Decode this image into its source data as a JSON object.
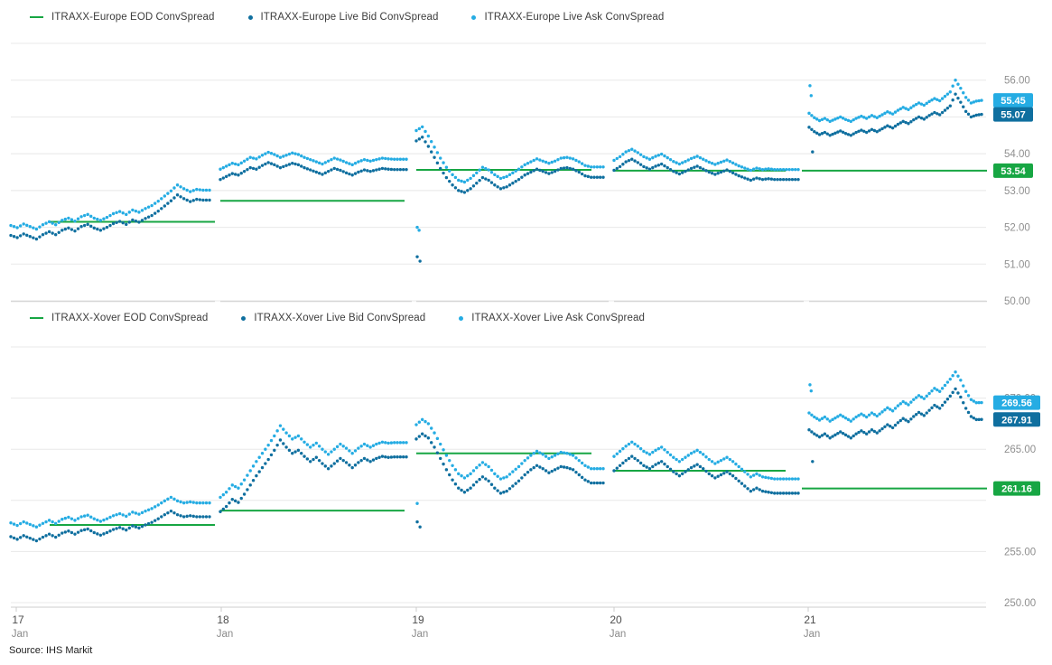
{
  "source": {
    "label": "Source: IHS Markit"
  },
  "colors": {
    "eod_green": "#17a643",
    "bid_dark": "#0f6f9f",
    "ask_light": "#25ace3",
    "grid": "#e8e8e8",
    "axis_line": "#cccccc",
    "tick_text": "#8f8f8f",
    "day_text": "#4d4d4d",
    "month_text": "#8a8a8a",
    "badge_text": "#ffffff"
  },
  "x_axis": {
    "days": [
      {
        "label": "17",
        "month": "Jan"
      },
      {
        "label": "18",
        "month": "Jan"
      },
      {
        "label": "19",
        "month": "Jan"
      },
      {
        "label": "20",
        "month": "Jan"
      },
      {
        "label": "21",
        "month": "Jan"
      }
    ]
  },
  "charts": [
    {
      "id": "europe",
      "legend": [
        {
          "label": "ITRAXX-Europe EOD ConvSpread",
          "marker": "dash",
          "series": "eod"
        },
        {
          "label": "ITRAXX-Europe Live Bid ConvSpread",
          "marker": "dot",
          "series": "bid"
        },
        {
          "label": "ITRAXX-Europe Live Ask ConvSpread",
          "marker": "dot",
          "series": "ask"
        }
      ],
      "chart_data": {
        "type": "scatter",
        "title": "",
        "ylim": [
          50,
          57
        ],
        "ytick_step": 1,
        "grid": true,
        "y_axis": {
          "tick_labels": [
            "56.00",
            "54.00",
            "53.00",
            "52.00",
            "51.00",
            "50.00"
          ],
          "tick_values": [
            56,
            54,
            53,
            52,
            51,
            50
          ]
        },
        "series": {
          "eod": {
            "name": "ITRAXX-Europe EOD ConvSpread",
            "per_day": [
              52.15,
              52.72,
              53.56,
              53.54,
              53.54
            ]
          },
          "bid": {
            "name": "ITRAXX-Europe Live Bid ConvSpread",
            "end_value": 55.07,
            "per_day": [
              [
                51.78,
                51.72,
                51.82,
                51.75,
                51.68,
                51.8,
                51.88,
                51.8,
                51.92,
                51.98,
                51.9,
                52.02,
                52.08,
                51.98,
                51.92,
                52.0,
                52.1,
                52.16,
                52.08,
                52.2,
                52.14,
                52.24,
                52.32,
                52.44,
                52.58,
                52.72,
                52.88,
                52.78,
                52.7,
                52.76,
                52.74,
                52.74
              ],
              [
                53.3,
                53.38,
                53.46,
                53.42,
                53.52,
                53.62,
                53.58,
                53.68,
                53.76,
                53.7,
                53.62,
                53.68,
                53.74,
                53.7,
                53.62,
                53.56,
                53.5,
                53.44,
                53.52,
                53.6,
                53.55,
                53.48,
                53.42,
                53.5,
                53.56,
                53.52,
                53.56,
                53.6,
                53.58,
                53.57,
                53.57,
                53.57
              ],
              [
                54.35,
                54.45,
                54.2,
                53.9,
                53.6,
                53.35,
                53.15,
                53.0,
                52.95,
                53.05,
                53.2,
                53.35,
                53.28,
                53.15,
                53.05,
                53.1,
                53.2,
                53.3,
                53.42,
                53.5,
                53.58,
                53.52,
                53.46,
                53.52,
                53.6,
                53.62,
                53.58,
                53.5,
                53.4,
                53.36,
                53.36,
                53.36
              ],
              [
                53.55,
                53.65,
                53.78,
                53.85,
                53.76,
                53.65,
                53.58,
                53.66,
                53.72,
                53.62,
                53.52,
                53.45,
                53.52,
                53.6,
                53.66,
                53.58,
                53.5,
                53.44,
                53.5,
                53.56,
                53.48,
                53.4,
                53.34,
                53.28,
                53.34,
                53.3,
                53.32,
                53.3,
                53.3,
                53.3,
                53.3,
                53.3
              ],
              [
                54.72,
                54.6,
                54.52,
                54.58,
                54.5,
                54.56,
                54.62,
                54.55,
                54.5,
                54.58,
                54.64,
                54.58,
                54.66,
                54.6,
                54.68,
                54.76,
                54.7,
                54.8,
                54.88,
                54.82,
                54.92,
                55.0,
                54.94,
                55.04,
                55.12,
                55.06,
                55.18,
                55.3,
                55.62,
                55.4,
                55.15,
                55.0,
                55.05,
                55.07
              ]
            ]
          },
          "ask": {
            "name": "ITRAXX-Europe Live Ask ConvSpread",
            "end_value": 55.45,
            "offsets_from_bid": [
              0.27,
              0.28,
              0.28,
              0.27,
              0.38
            ]
          }
        },
        "outliers": [
          {
            "day": 2,
            "series": "ask",
            "points": [
              [
                0.005,
                52.0
              ],
              [
                0.015,
                51.92
              ]
            ]
          },
          {
            "day": 2,
            "series": "bid",
            "points": [
              [
                0.005,
                51.2
              ],
              [
                0.02,
                51.08
              ]
            ]
          },
          {
            "day": 4,
            "series": "ask",
            "points": [
              [
                0.005,
                55.85
              ],
              [
                0.012,
                55.58
              ]
            ]
          },
          {
            "day": 4,
            "series": "bid",
            "points": [
              [
                0.02,
                54.05
              ]
            ]
          }
        ],
        "end_labels": [
          {
            "text": "55.45",
            "value": 55.45,
            "series": "ask"
          },
          {
            "text": "55.07",
            "value": 55.07,
            "series": "bid"
          },
          {
            "text": "53.54",
            "value": 53.54,
            "series": "eod"
          }
        ]
      }
    },
    {
      "id": "xover",
      "legend": [
        {
          "label": "ITRAXX-Xover EOD ConvSpread",
          "marker": "dash",
          "series": "eod"
        },
        {
          "label": "ITRAXX-Xover Live Bid ConvSpread",
          "marker": "dot",
          "series": "bid"
        },
        {
          "label": "ITRAXX-Xover Live Ask ConvSpread",
          "marker": "dot",
          "series": "ask"
        }
      ],
      "chart_data": {
        "type": "scatter",
        "title": "",
        "ylim": [
          250,
          275
        ],
        "ytick_step": 5,
        "grid": true,
        "y_axis": {
          "tick_labels": [
            "270.00",
            "265.00",
            "255.00",
            "250.00"
          ],
          "tick_values": [
            270,
            265,
            255,
            250
          ]
        },
        "series": {
          "eod": {
            "name": "ITRAXX-Xover EOD ConvSpread",
            "per_day": [
              257.6,
              259.0,
              264.6,
              262.9,
              261.16
            ]
          },
          "bid": {
            "name": "ITRAXX-Xover Live Bid ConvSpread",
            "end_value": 267.91,
            "per_day": [
              [
                256.45,
                256.2,
                256.55,
                256.3,
                256.05,
                256.4,
                256.7,
                256.4,
                256.8,
                257.0,
                256.7,
                257.05,
                257.2,
                256.85,
                256.6,
                256.85,
                257.15,
                257.35,
                257.1,
                257.5,
                257.3,
                257.6,
                257.85,
                258.2,
                258.6,
                258.95,
                258.6,
                258.4,
                258.5,
                258.4,
                258.4,
                258.4
              ],
              [
                258.9,
                259.4,
                260.1,
                259.8,
                260.6,
                261.5,
                262.4,
                263.2,
                264.0,
                264.9,
                265.9,
                265.2,
                264.6,
                264.9,
                264.3,
                263.8,
                264.2,
                263.6,
                263.1,
                263.6,
                264.1,
                263.7,
                263.2,
                263.7,
                264.1,
                263.8,
                264.1,
                264.3,
                264.2,
                264.25,
                264.25,
                264.25
              ],
              [
                266.0,
                266.5,
                266.1,
                265.2,
                264.1,
                263.0,
                262.0,
                261.2,
                260.8,
                261.2,
                261.8,
                262.3,
                261.9,
                261.2,
                260.7,
                260.9,
                261.4,
                261.9,
                262.5,
                263.0,
                263.4,
                263.1,
                262.7,
                263.0,
                263.3,
                263.2,
                263.0,
                262.5,
                262.0,
                261.7,
                261.7,
                261.7
              ],
              [
                262.9,
                263.4,
                263.9,
                264.3,
                263.9,
                263.4,
                263.1,
                263.5,
                263.8,
                263.3,
                262.8,
                262.4,
                262.8,
                263.2,
                263.5,
                263.1,
                262.6,
                262.2,
                262.5,
                262.8,
                262.4,
                261.9,
                261.4,
                260.9,
                261.2,
                260.9,
                260.8,
                260.7,
                260.7,
                260.7,
                260.7,
                260.7
              ],
              [
                266.9,
                266.5,
                266.2,
                266.5,
                266.1,
                266.4,
                266.7,
                266.4,
                266.1,
                266.5,
                266.8,
                266.5,
                266.9,
                266.6,
                267.0,
                267.4,
                267.1,
                267.6,
                268.0,
                267.7,
                268.2,
                268.6,
                268.3,
                268.8,
                269.3,
                269.0,
                269.6,
                270.2,
                270.9,
                270.1,
                269.0,
                268.2,
                267.9,
                267.91
              ]
            ]
          },
          "ask": {
            "name": "ITRAXX-Xover Live Ask ConvSpread",
            "end_value": 269.56,
            "offsets_from_bid": [
              1.35,
              1.4,
              1.4,
              1.4,
              1.65
            ]
          }
        },
        "outliers": [
          {
            "day": 2,
            "series": "bid",
            "points": [
              [
                0.005,
                257.9
              ],
              [
                0.02,
                257.4
              ]
            ]
          },
          {
            "day": 2,
            "series": "ask",
            "points": [
              [
                0.005,
                259.7
              ]
            ]
          },
          {
            "day": 4,
            "series": "ask",
            "points": [
              [
                0.005,
                271.3
              ],
              [
                0.012,
                270.7
              ]
            ]
          },
          {
            "day": 4,
            "series": "bid",
            "points": [
              [
                0.02,
                263.8
              ]
            ]
          }
        ],
        "end_labels": [
          {
            "text": "269.56",
            "value": 269.56,
            "series": "ask"
          },
          {
            "text": "267.91",
            "value": 267.91,
            "series": "bid"
          },
          {
            "text": "261.16",
            "value": 261.16,
            "series": "eod"
          }
        ]
      }
    }
  ]
}
